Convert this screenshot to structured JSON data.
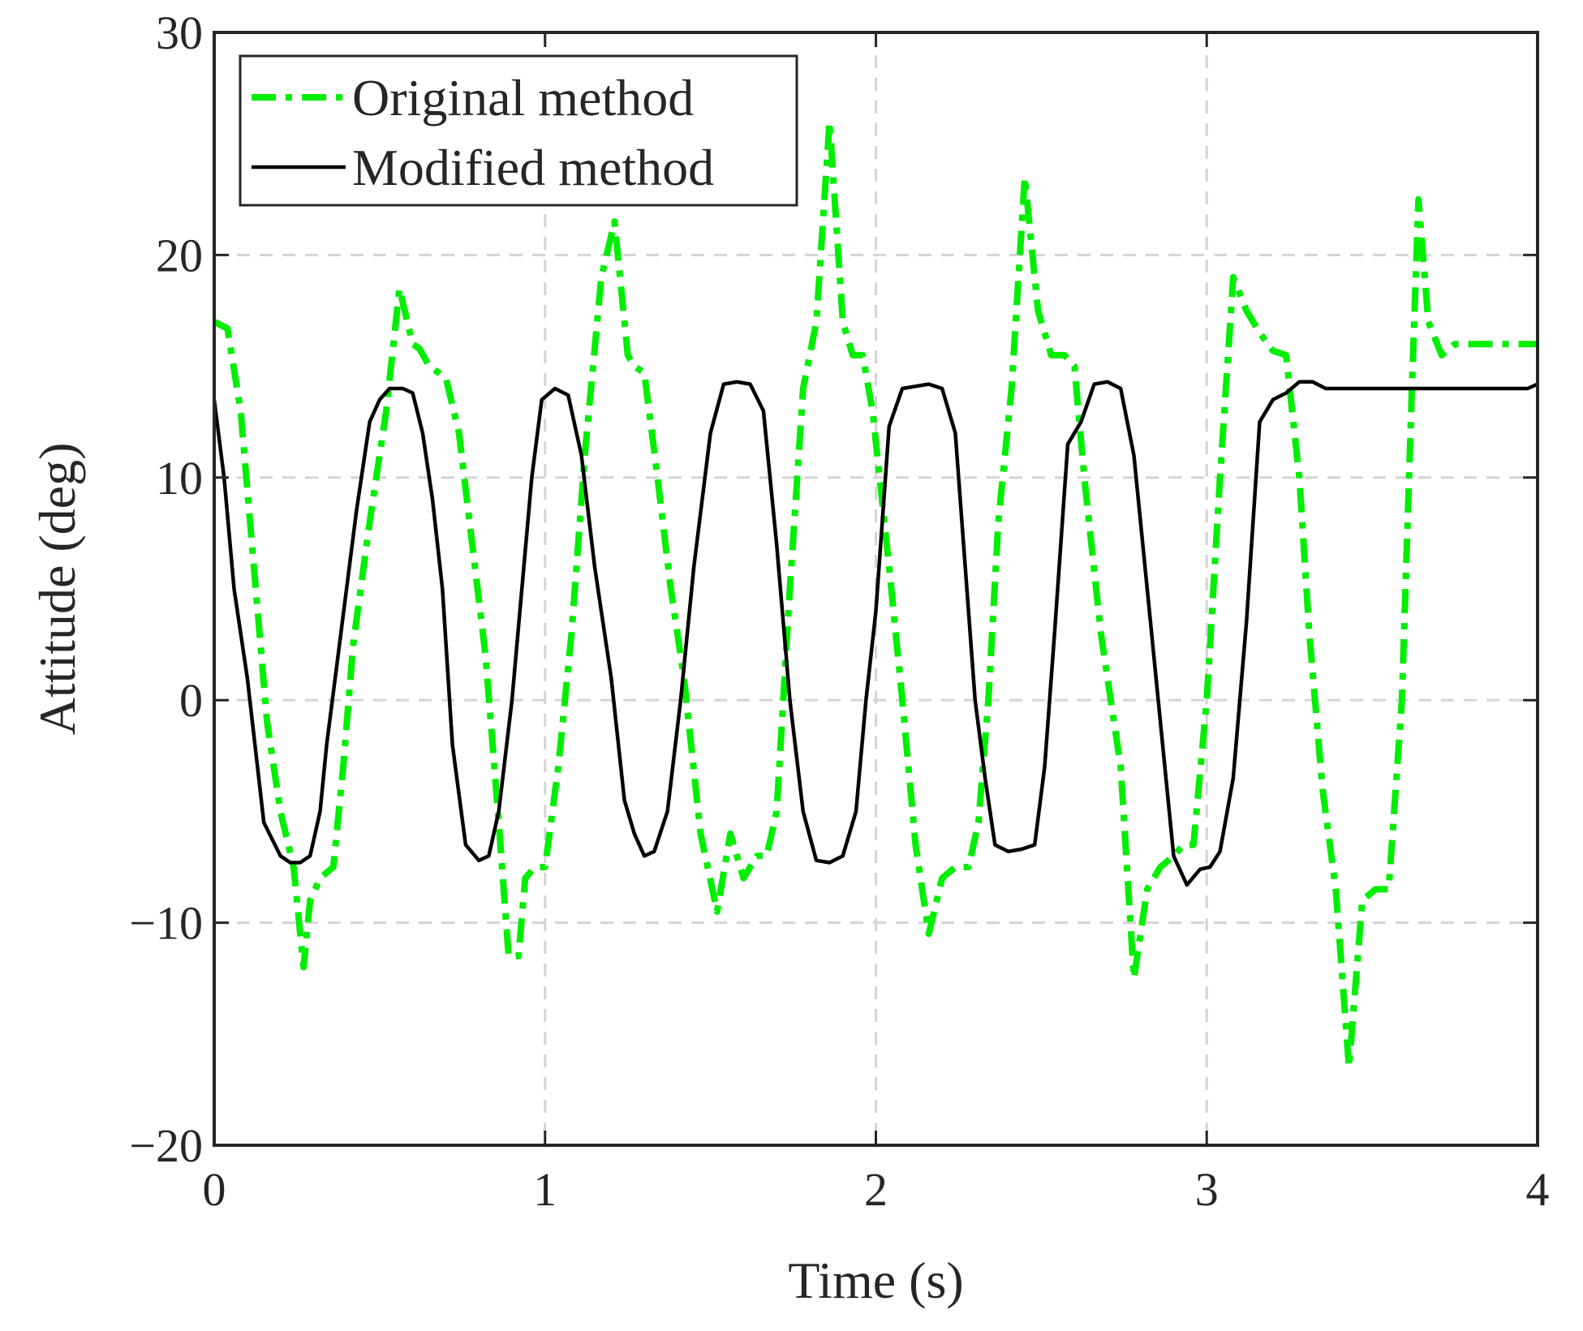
{
  "chart_data": {
    "type": "line",
    "title": "",
    "xlabel": "Time (s)",
    "ylabel": "Attitude (deg)",
    "xlim": [
      0,
      4
    ],
    "ylim": [
      -20,
      30
    ],
    "xticks": [
      0,
      1,
      2,
      3,
      4
    ],
    "yticks": [
      -20,
      -10,
      0,
      10,
      20,
      30
    ],
    "xtick_labels": [
      "0",
      "1",
      "2",
      "3",
      "4"
    ],
    "ytick_labels": [
      "−20",
      "−10",
      "0",
      "10",
      "20",
      "30"
    ],
    "grid": true,
    "legend_position": "top-left",
    "series": [
      {
        "name": "Original method",
        "color": "#00ee00",
        "style": "dash-dot",
        "x": [
          0.0,
          0.04,
          0.08,
          0.12,
          0.16,
          0.2,
          0.24,
          0.27,
          0.29,
          0.32,
          0.36,
          0.39,
          0.42,
          0.47,
          0.52,
          0.56,
          0.6,
          0.62,
          0.65,
          0.7,
          0.74,
          0.78,
          0.82,
          0.86,
          0.89,
          0.92,
          0.94,
          0.97,
          1.0,
          1.04,
          1.08,
          1.12,
          1.17,
          1.21,
          1.25,
          1.27,
          1.3,
          1.34,
          1.38,
          1.42,
          1.47,
          1.52,
          1.56,
          1.6,
          1.64,
          1.67,
          1.7,
          1.74,
          1.78,
          1.82,
          1.86,
          1.9,
          1.93,
          1.96,
          1.99,
          2.04,
          2.08,
          2.12,
          2.16,
          2.2,
          2.24,
          2.28,
          2.31,
          2.34,
          2.37,
          2.41,
          2.45,
          2.49,
          2.53,
          2.57,
          2.6,
          2.63,
          2.68,
          2.74,
          2.78,
          2.82,
          2.86,
          2.9,
          2.93,
          2.96,
          3.0,
          3.04,
          3.08,
          3.12,
          3.16,
          3.2,
          3.24,
          3.28,
          3.31,
          3.35,
          3.39,
          3.43,
          3.47,
          3.51,
          3.55,
          3.59,
          3.62,
          3.64,
          3.67,
          3.71,
          3.75,
          3.79,
          3.83,
          3.87,
          3.91,
          3.95,
          3.97,
          4.0
        ],
        "values": [
          17,
          16.7,
          13,
          6,
          -1,
          -5,
          -7.5,
          -12,
          -9,
          -8,
          -7.5,
          -3,
          2.5,
          8,
          13,
          18.5,
          16,
          15.8,
          15,
          14.5,
          12,
          7,
          2,
          -5.5,
          -11.5,
          -11.5,
          -8,
          -7.5,
          -7.5,
          -3,
          3,
          11,
          19,
          21.5,
          15.5,
          15,
          14.7,
          10,
          5,
          1,
          -6,
          -9.5,
          -6,
          -8,
          -7,
          -7,
          -5,
          5,
          14,
          17,
          26,
          17,
          15.5,
          15.5,
          13,
          6,
          0,
          -6.5,
          -10.5,
          -8,
          -7.5,
          -7.5,
          -5.5,
          0,
          8,
          14,
          23.5,
          17.5,
          15.5,
          15.5,
          15,
          10,
          3,
          -3,
          -12.5,
          -8.5,
          -7.5,
          -7,
          -6.5,
          -6.5,
          0,
          10,
          19,
          17.5,
          16.5,
          15.7,
          15.5,
          10,
          3,
          -4,
          -8.5,
          -16.5,
          -9,
          -8.5,
          -8.5,
          0,
          14,
          22.5,
          17,
          15.5,
          16,
          16,
          16,
          16,
          16,
          16,
          16,
          16
        ]
      },
      {
        "name": "Modified method",
        "color": "#000000",
        "style": "solid",
        "x": [
          0.0,
          0.03,
          0.06,
          0.1,
          0.15,
          0.2,
          0.23,
          0.26,
          0.29,
          0.32,
          0.34,
          0.37,
          0.4,
          0.43,
          0.47,
          0.5,
          0.53,
          0.57,
          0.6,
          0.63,
          0.66,
          0.69,
          0.72,
          0.76,
          0.8,
          0.83,
          0.86,
          0.9,
          0.93,
          0.96,
          0.99,
          1.03,
          1.07,
          1.11,
          1.15,
          1.2,
          1.24,
          1.27,
          1.3,
          1.33,
          1.37,
          1.41,
          1.45,
          1.5,
          1.54,
          1.58,
          1.62,
          1.66,
          1.7,
          1.74,
          1.78,
          1.82,
          1.86,
          1.9,
          1.94,
          1.97,
          2.0,
          2.04,
          2.08,
          2.12,
          2.16,
          2.2,
          2.24,
          2.27,
          2.3,
          2.33,
          2.36,
          2.4,
          2.44,
          2.48,
          2.51,
          2.54,
          2.58,
          2.62,
          2.66,
          2.7,
          2.74,
          2.78,
          2.82,
          2.86,
          2.9,
          2.94,
          2.98,
          3.01,
          3.04,
          3.08,
          3.12,
          3.16,
          3.2,
          3.24,
          3.28,
          3.32,
          3.36,
          3.4,
          3.44,
          3.48,
          3.52,
          3.56,
          3.6,
          3.64,
          3.67,
          3.7,
          3.74,
          3.78,
          3.82,
          3.86,
          3.9,
          3.94,
          3.97,
          4.0
        ],
        "values": [
          13.5,
          10,
          5,
          1,
          -5.5,
          -7,
          -7.3,
          -7.3,
          -7,
          -5,
          -2,
          1.5,
          5,
          8.5,
          12.5,
          13.5,
          14,
          14,
          13.8,
          12,
          9,
          5,
          -2,
          -6.5,
          -7.2,
          -7,
          -5,
          0,
          5,
          10,
          13.5,
          14,
          13.7,
          11,
          6,
          1,
          -4.5,
          -6,
          -7,
          -6.8,
          -5,
          0,
          6,
          12,
          14.2,
          14.3,
          14.2,
          13,
          7,
          0,
          -5,
          -7.2,
          -7.3,
          -7,
          -5,
          0,
          4,
          12.3,
          14,
          14.1,
          14.2,
          14,
          12,
          6,
          0,
          -3.5,
          -6.5,
          -6.8,
          -6.7,
          -6.5,
          -3,
          3,
          11.5,
          12.5,
          14.2,
          14.3,
          14,
          11,
          5,
          -1,
          -7,
          -8.3,
          -7.6,
          -7.5,
          -6.8,
          -3.5,
          3.5,
          12.5,
          13.5,
          13.8,
          14.3,
          14.3,
          14,
          14,
          14,
          14,
          14,
          14,
          14,
          14,
          14,
          14,
          14,
          14,
          14,
          14,
          14,
          14,
          14,
          14.2
        ]
      }
    ]
  }
}
